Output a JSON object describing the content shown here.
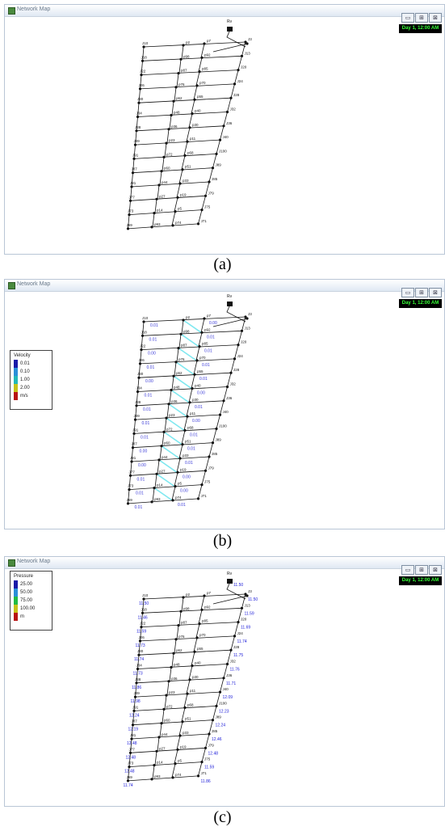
{
  "panels": [
    {
      "window_title": "Network Map",
      "day_label": "Day 1, 12:00 AM",
      "window_buttons": [
        "▭",
        "⊞",
        "⊠"
      ],
      "reservoir_label": "Rv",
      "legend": null,
      "caption": "(a)"
    },
    {
      "window_title": "Network Map",
      "day_label": "Day 1, 12:00 AM",
      "window_buttons": [
        "▭",
        "⊞",
        "⊠"
      ],
      "reservoir_label": "Rv",
      "legend": {
        "title": "Velocity",
        "entries": [
          "0.01",
          "0.10",
          "1.00",
          "2.00"
        ],
        "unit": "m/s",
        "colors": [
          "#1a1aa8",
          "#2a8fd8",
          "#23b8b8",
          "#c6c21a",
          "#b81414"
        ]
      },
      "caption": "(b)"
    },
    {
      "window_title": "Network Map",
      "day_label": "Day 1, 12:00 AM",
      "window_buttons": [
        "▭",
        "⊞",
        "⊠"
      ],
      "reservoir_label": "Rv",
      "legend": {
        "title": "Pressure",
        "entries": [
          "25.00",
          "50.00",
          "75.00",
          "100.00"
        ],
        "unit": "m",
        "colors": [
          "#1a1aa8",
          "#2a8fd8",
          "#22bb44",
          "#c6c21a",
          "#b81414"
        ]
      },
      "caption": "(c)"
    }
  ],
  "network": {
    "color_base": "#111111",
    "color_velocity_text": "#3a3ad8",
    "color_velocity_highlight": "#7fe8f0",
    "color_pressure_text": "#1a1ad8",
    "node_labels": [
      "J3",
      "J10",
      "J13",
      "J18",
      "J20",
      "J22",
      "J24",
      "J26",
      "J28",
      "J30",
      "J32",
      "J34",
      "J36",
      "J38",
      "J40",
      "J39",
      "J100",
      "J91",
      "J89",
      "J87",
      "J85",
      "J81",
      "J79",
      "J77",
      "J75",
      "J73",
      "J71",
      "J69",
      "J2",
      "J8",
      "J15"
    ],
    "pipe_labels": [
      "p2",
      "p7",
      "p98",
      "p92",
      "p87",
      "p85",
      "p76",
      "p70",
      "p62",
      "p55",
      "p48",
      "p40",
      "p36",
      "p30",
      "p23",
      "p11",
      "p72",
      "p68",
      "p60",
      "p51",
      "p44",
      "p33",
      "p27",
      "p19",
      "p14",
      "p5",
      "p93",
      "p74",
      "p66",
      "p57"
    ],
    "velocity_values": [
      "0.01",
      "0.00",
      "0.01",
      "0.01",
      "0.00",
      "0.01",
      "0.01",
      "0.01",
      "0.00",
      "0.01",
      "0.01",
      "0.00",
      "0.01",
      "0.01",
      "0.01",
      "0.00",
      "0.01",
      "0.01",
      "0.00",
      "0.01",
      "0.00",
      "0.01",
      "0.01",
      "0.00"
    ],
    "pressure_values": [
      "11.50",
      "11.50",
      "11.50",
      "11.46",
      "11.59",
      "11.59",
      "11.69",
      "11.73",
      "11.74",
      "11.74",
      "11.75",
      "11.73",
      "11.76",
      "11.86",
      "11.71",
      "11.98",
      "12.09",
      "12.24",
      "12.23",
      "12.19",
      "12.24",
      "12.48",
      "12.46",
      "12.48",
      "12.48",
      "12.48",
      "11.59",
      "11.74",
      "11.86",
      "12.23"
    ]
  }
}
